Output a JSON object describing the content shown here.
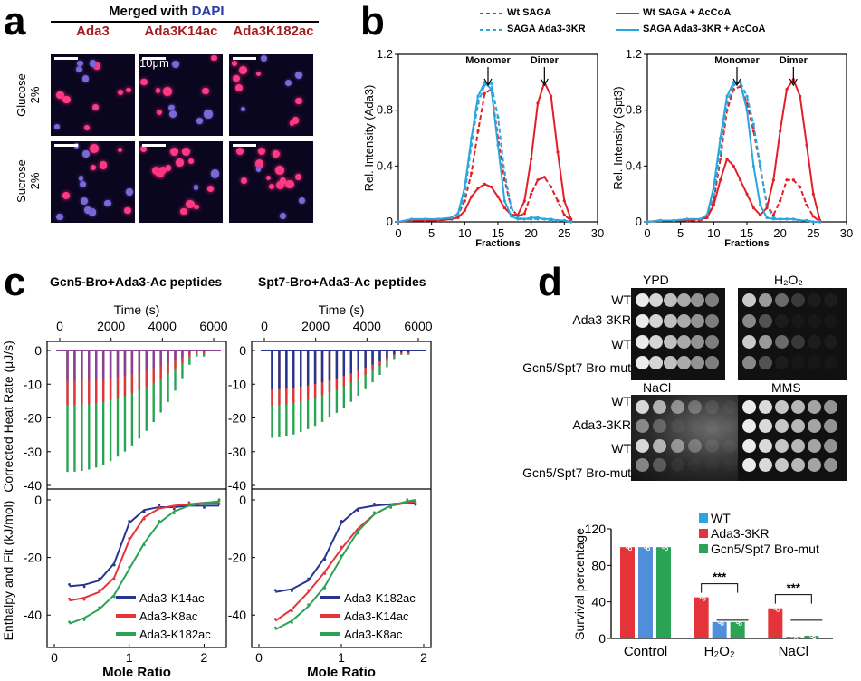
{
  "panel_labels": {
    "a": "a",
    "b": "b",
    "c": "c",
    "d": "d"
  },
  "panel_a": {
    "header_prefix": "Merged with ",
    "header_dapi": "DAPI",
    "columns": [
      "Ada3",
      "Ada3K14ac",
      "Ada3K182ac"
    ],
    "rows": [
      {
        "label1": "Glucose",
        "label2": "2%"
      },
      {
        "label1": "Sucrose",
        "label2": "2%"
      }
    ],
    "scale_label": "10μm"
  },
  "panel_b": {
    "legend": [
      "Wt SAGA",
      "SAGA Ada3-3KR",
      "Wt SAGA + AcCoA",
      "SAGA Ada3-3KR + AcCoA"
    ],
    "annotations": {
      "monomer": "Monomer",
      "dimer": "Dimer"
    },
    "colors": {
      "red": "#e41e26",
      "blue": "#2aa6de"
    }
  },
  "panel_c": {
    "titles": [
      "Gcn5-Bro+Ada3-Ac peptides",
      "Spt7-Bro+Ada3-Ac peptides"
    ],
    "top_xlabel": "Time (s)",
    "ylabel_top": "Corrected Heat Rate (μJ/s)",
    "ylabel_bottom": "Enthalpy and Fit (kJ/mol)",
    "xlabel": "Mole Ratio",
    "left_legend": [
      "Ada3-K14ac",
      "Ada3-K8ac",
      "Ada3-K182ac"
    ],
    "right_legend": [
      "Ada3-K182ac",
      "Ada3-K14ac",
      "Ada3-K8ac"
    ],
    "colors": {
      "navy": "#26358f",
      "red": "#e4343a",
      "green": "#2aa454",
      "purple": "#8a3f98"
    }
  },
  "panel_d": {
    "plate_titles": [
      "YPD",
      "H₂O₂",
      "NaCl",
      "MMS"
    ],
    "strains": [
      "WT",
      "Ada3-3KR",
      "WT",
      "Gcn5/Spt7 Bro-mut"
    ],
    "bar_legend": [
      "WT",
      "Ada3-3KR",
      "Gcn5/Spt7 Bro-mut"
    ],
    "bar_colors": {
      "WT": "#e4343a",
      "Ada3-3KR": "#4f8fd9",
      "Gcn5/Spt7 Bro-mut": "#2aa454",
      "legend_WT": "#2aa6de"
    },
    "significance": "***"
  },
  "chart_data": [
    {
      "type": "line",
      "title": "",
      "xlabel": "Fractions",
      "ylabel": "Rel. Intensity (Ada3)",
      "xlim": [
        0,
        30
      ],
      "ylim": [
        0,
        1.2
      ],
      "xticks": [
        0,
        5,
        10,
        15,
        20,
        25,
        30
      ],
      "yticks": [
        0,
        0.4,
        0.8,
        1.2
      ],
      "x": [
        0,
        2,
        4,
        6,
        8,
        9,
        10,
        11,
        12,
        13,
        14,
        15,
        16,
        17,
        18,
        19,
        20,
        21,
        22,
        23,
        24,
        25,
        26
      ],
      "series": [
        {
          "name": "Wt SAGA",
          "style": "dashed",
          "color": "#e41e26",
          "values": [
            0,
            0.01,
            0.01,
            0.02,
            0.02,
            0.05,
            0.15,
            0.35,
            0.65,
            0.92,
            0.95,
            0.6,
            0.3,
            0.1,
            0.04,
            0.06,
            0.2,
            0.3,
            0.32,
            0.25,
            0.15,
            0.05,
            0.01
          ]
        },
        {
          "name": "SAGA Ada3-3KR",
          "style": "dashed",
          "color": "#2aa6de",
          "values": [
            0,
            0.01,
            0.01,
            0.01,
            0.02,
            0.05,
            0.2,
            0.55,
            0.85,
            0.98,
            0.99,
            0.75,
            0.35,
            0.1,
            0.03,
            0.02,
            0.02,
            0.02,
            0.02,
            0.01,
            0.01,
            0.01,
            0
          ]
        },
        {
          "name": "Wt SAGA + AcCoA",
          "style": "solid",
          "color": "#e41e26",
          "values": [
            0,
            0.01,
            0.01,
            0.01,
            0.02,
            0.03,
            0.08,
            0.18,
            0.24,
            0.27,
            0.25,
            0.18,
            0.1,
            0.05,
            0.05,
            0.15,
            0.45,
            0.85,
            1.0,
            0.9,
            0.5,
            0.15,
            0.02
          ]
        },
        {
          "name": "SAGA Ada3-3KR + AcCoA",
          "style": "solid",
          "color": "#2aa6de",
          "values": [
            0,
            0.02,
            0.02,
            0.02,
            0.03,
            0.06,
            0.25,
            0.6,
            0.9,
            1.0,
            0.95,
            0.55,
            0.15,
            0.04,
            0.02,
            0.02,
            0.03,
            0.03,
            0.02,
            0.02,
            0.01,
            0.01,
            0
          ]
        }
      ]
    },
    {
      "type": "line",
      "title": "",
      "xlabel": "Fractions",
      "ylabel": "Rel. Intensity (Spt3)",
      "xlim": [
        0,
        30
      ],
      "ylim": [
        0,
        1.2
      ],
      "xticks": [
        0,
        5,
        10,
        15,
        20,
        25,
        30
      ],
      "yticks": [
        0,
        0.4,
        0.8,
        1.2
      ],
      "x": [
        0,
        2,
        4,
        6,
        8,
        9,
        10,
        11,
        12,
        13,
        14,
        15,
        16,
        17,
        18,
        19,
        20,
        21,
        22,
        23,
        24,
        25,
        26
      ],
      "series": [
        {
          "name": "Wt SAGA",
          "style": "dashed",
          "color": "#e41e26",
          "values": [
            0,
            0.01,
            0.01,
            0.01,
            0.01,
            0.03,
            0.15,
            0.45,
            0.8,
            0.95,
            0.97,
            0.85,
            0.65,
            0.4,
            0.12,
            0.05,
            0.15,
            0.3,
            0.3,
            0.25,
            0.12,
            0.04,
            0
          ]
        },
        {
          "name": "SAGA Ada3-3KR",
          "style": "dashed",
          "color": "#2aa6de",
          "values": [
            0,
            0.01,
            0.01,
            0.02,
            0.02,
            0.04,
            0.2,
            0.5,
            0.85,
            0.98,
            1.0,
            0.9,
            0.7,
            0.4,
            0.12,
            0.03,
            0.02,
            0.02,
            0.02,
            0.01,
            0.01,
            0,
            0
          ]
        },
        {
          "name": "Wt SAGA + AcCoA",
          "style": "solid",
          "color": "#e41e26",
          "values": [
            0,
            0.01,
            0.01,
            0.01,
            0.02,
            0.03,
            0.12,
            0.3,
            0.45,
            0.4,
            0.3,
            0.2,
            0.1,
            0.05,
            0.1,
            0.3,
            0.65,
            0.95,
            1.02,
            0.9,
            0.55,
            0.2,
            0.01
          ]
        },
        {
          "name": "SAGA Ada3-3KR + AcCoA",
          "style": "solid",
          "color": "#2aa6de",
          "values": [
            0,
            0.01,
            0.01,
            0.02,
            0.02,
            0.05,
            0.25,
            0.6,
            0.9,
            1.0,
            1.0,
            0.8,
            0.4,
            0.12,
            0.03,
            0.02,
            0.02,
            0.02,
            0.02,
            0.01,
            0.01,
            0,
            0
          ]
        }
      ]
    },
    {
      "type": "bar",
      "title": "",
      "ylabel": "Survival percentage",
      "ylim": [
        0,
        120
      ],
      "yticks": [
        0,
        40,
        80,
        120
      ],
      "categories": [
        "Control",
        "H₂O₂",
        "NaCl"
      ],
      "series": [
        {
          "name": "WT",
          "values": [
            100,
            45,
            33
          ]
        },
        {
          "name": "Ada3-3KR",
          "values": [
            100,
            18,
            2
          ]
        },
        {
          "name": "Gcn5/Spt7 Bro-mut",
          "values": [
            100,
            18,
            3
          ]
        }
      ]
    },
    {
      "type": "line",
      "title": "Gcn5-Bro+Ada3-Ac peptides",
      "xlabel": "Mole Ratio",
      "ylabel": "Enthalpy and Fit (kJ/mol)",
      "xlim": [
        0,
        2.2
      ],
      "ylim": [
        -50,
        0
      ],
      "xticks": [
        0,
        1,
        2
      ],
      "yticks": [
        0,
        -20,
        -40
      ],
      "x": [
        0.2,
        0.4,
        0.6,
        0.8,
        1.0,
        1.2,
        1.4,
        1.6,
        1.8,
        2.0,
        2.2
      ],
      "series": [
        {
          "name": "Ada3-K14ac",
          "values": [
            -30,
            -29.5,
            -28,
            -22,
            -8,
            -3.5,
            -2.5,
            -2.5,
            -2,
            -2,
            -2
          ]
        },
        {
          "name": "Ada3-K8ac",
          "values": [
            -35,
            -34,
            -32,
            -27,
            -14,
            -6,
            -3,
            -2,
            -1.5,
            -1,
            -1
          ]
        },
        {
          "name": "Ada3-K182ac",
          "values": [
            -43,
            -41,
            -38,
            -33,
            -24,
            -15,
            -8,
            -4,
            -2,
            -1,
            -0.5
          ]
        }
      ]
    },
    {
      "type": "line",
      "title": "Spt7-Bro+Ada3-Ac peptides",
      "xlabel": "Mole Ratio",
      "ylabel": "",
      "xlim": [
        0,
        2
      ],
      "ylim": [
        -50,
        0
      ],
      "xticks": [
        0,
        1,
        2
      ],
      "yticks": [
        0,
        -20,
        -40
      ],
      "x": [
        0.2,
        0.4,
        0.6,
        0.8,
        1.0,
        1.2,
        1.4,
        1.6,
        1.8,
        1.9
      ],
      "series": [
        {
          "name": "Ada3-K182ac",
          "values": [
            -32,
            -31,
            -28,
            -20,
            -8,
            -3,
            -2,
            -1.5,
            -1,
            -1
          ]
        },
        {
          "name": "Ada3-K14ac",
          "values": [
            -42,
            -38,
            -32,
            -25,
            -17,
            -10,
            -5,
            -2,
            -1,
            -0.5
          ]
        },
        {
          "name": "Ada3-K8ac",
          "values": [
            -45,
            -42,
            -37,
            -30,
            -20,
            -11,
            -5,
            -2,
            -0.5,
            0
          ]
        }
      ]
    }
  ]
}
